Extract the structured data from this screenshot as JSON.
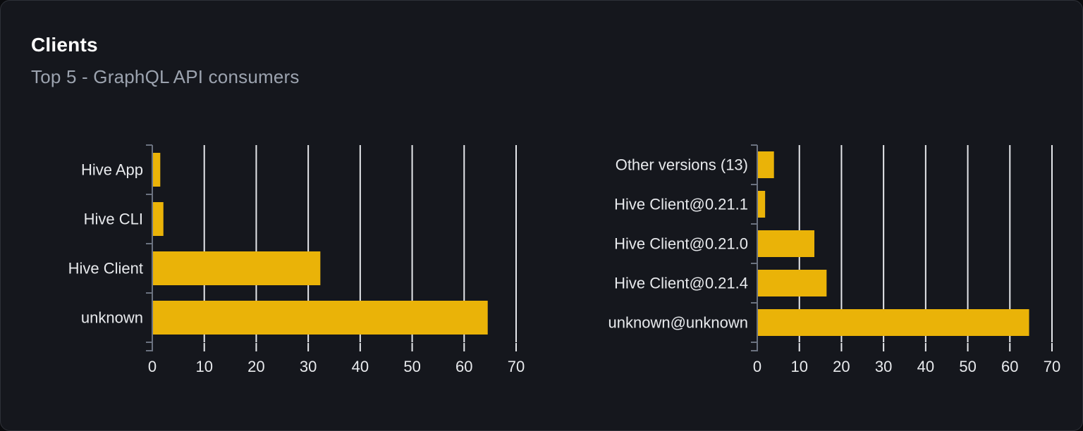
{
  "header": {
    "title": "Clients",
    "subtitle": "Top 5 - GraphQL API consumers"
  },
  "colors": {
    "page_background": "#0a0b0e",
    "card_background": "#15171d",
    "card_border": "#2e3138",
    "bar": "#eab308",
    "gridline": "#e5e7eb",
    "axis": "#6b7280",
    "title_text": "#ffffff",
    "subtitle_text": "#9ca3af",
    "label_text": "#e8eaed"
  },
  "chart_data": [
    {
      "id": "clients-by-name",
      "type": "bar",
      "orientation": "horizontal",
      "title": "",
      "categories": [
        "Hive App",
        "Hive CLI",
        "Hive Client",
        "unknown"
      ],
      "values": [
        1.4,
        2,
        32.2,
        64.4
      ],
      "xticks": [
        0,
        10,
        20,
        30,
        40,
        50,
        60,
        70
      ],
      "xlim": [
        0,
        70
      ],
      "xlabel": "",
      "ylabel": "",
      "grid": true,
      "legend": false
    },
    {
      "id": "clients-by-version",
      "type": "bar",
      "orientation": "horizontal",
      "title": "",
      "categories": [
        "Other versions (13)",
        "Hive Client@0.21.1",
        "Hive Client@0.21.0",
        "Hive Client@0.21.4",
        "unknown@unknown"
      ],
      "values": [
        3.8,
        1.7,
        13.4,
        16.3,
        64.4
      ],
      "xticks": [
        0,
        10,
        20,
        30,
        40,
        50,
        60,
        70
      ],
      "xlim": [
        0,
        70
      ],
      "xlabel": "",
      "ylabel": "",
      "grid": true,
      "legend": false
    }
  ]
}
